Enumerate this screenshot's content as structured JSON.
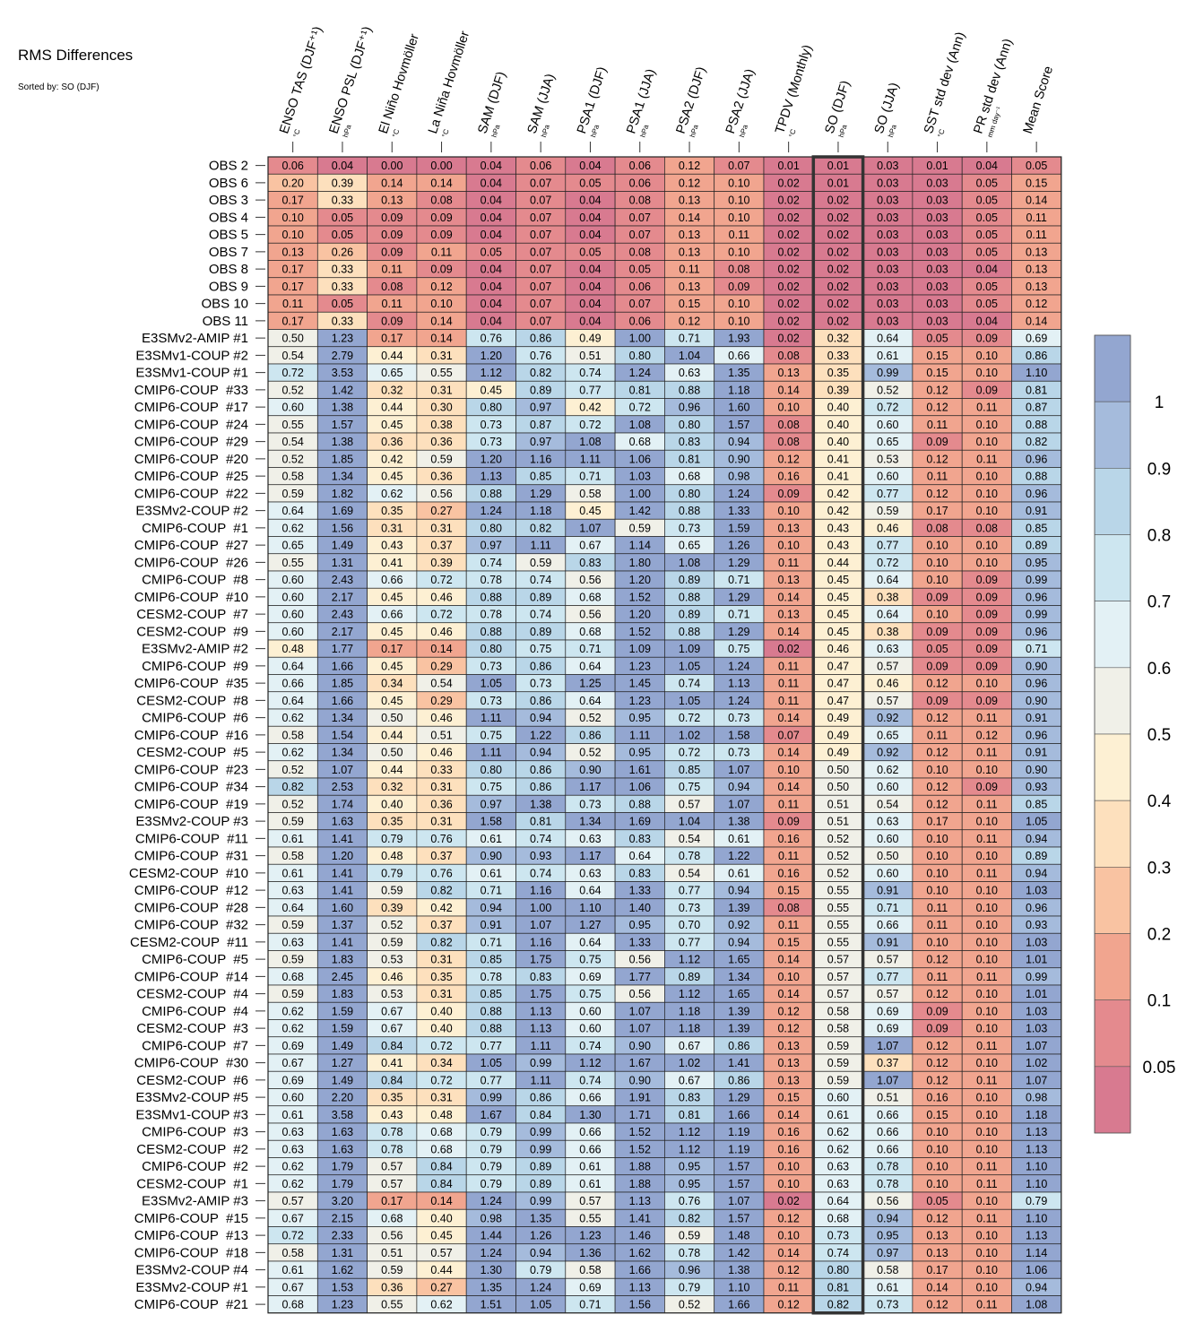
{
  "title": "RMS Differences",
  "subtitle": "Sorted by: SO (DJF)",
  "colors": {
    "bins": [
      "#d87a90",
      "#e48a8e",
      "#f1a58f",
      "#f9c3a2",
      "#fde0bd",
      "#fdf0d3",
      "#f0f0e8",
      "#e3f1f5",
      "#cde6f0",
      "#b9d6e8",
      "#a5bbdc",
      "#93a6d0"
    ],
    "grid": "#222222",
    "highlight": "#333333"
  },
  "chart_data": {
    "type": "heatmap",
    "title": "RMS Differences",
    "subtitle": "Sorted by: SO (DJF)",
    "columns": [
      {
        "name": "ENSO TAS (DJF⁺¹)",
        "unit": "°C"
      },
      {
        "name": "ENSO PSL (DJF⁺¹)",
        "unit": "hPa"
      },
      {
        "name": "El Niño Hovmöller",
        "unit": "°C"
      },
      {
        "name": "La Niña Hovmöller",
        "unit": "°C"
      },
      {
        "name": "SAM (DJF)",
        "unit": "hPa"
      },
      {
        "name": "SAM (JJA)",
        "unit": "hPa"
      },
      {
        "name": "PSA1 (DJF)",
        "unit": "hPa"
      },
      {
        "name": "PSA1 (JJA)",
        "unit": "hPa"
      },
      {
        "name": "PSA2 (DJF)",
        "unit": "hPa"
      },
      {
        "name": "PSA2 (JJA)",
        "unit": "hPa"
      },
      {
        "name": "TPDV (Monthly)",
        "unit": "°C"
      },
      {
        "name": "SO (DJF)",
        "unit": "hPa"
      },
      {
        "name": "SO (JJA)",
        "unit": "hPa"
      },
      {
        "name": "SST std dev (Ann)",
        "unit": "°C"
      },
      {
        "name": "PR std dev (Ann)",
        "unit": "mm day⁻¹"
      },
      {
        "name": "Mean Score",
        "unit": ""
      }
    ],
    "highlight_column": "SO (DJF)",
    "rows": [
      "OBS 2",
      "OBS 6",
      "OBS 3",
      "OBS 4",
      "OBS 5",
      "OBS 7",
      "OBS 8",
      "OBS 9",
      "OBS 10",
      "OBS 11",
      "E3SMv2-AMIP #1",
      "E3SMv1-COUP #2",
      "E3SMv1-COUP #1",
      "CMIP6-COUP  #33",
      "CMIP6-COUP  #17",
      "CMIP6-COUP  #24",
      "CMIP6-COUP  #29",
      "CMIP6-COUP  #20",
      "CMIP6-COUP  #25",
      "CMIP6-COUP  #22",
      "E3SMv2-COUP #2",
      "CMIP6-COUP  #1",
      "CMIP6-COUP  #27",
      "CMIP6-COUP  #26",
      "CMIP6-COUP  #8",
      "CMIP6-COUP  #10",
      "CESM2-COUP  #7",
      "CESM2-COUP  #9",
      "E3SMv2-AMIP #2",
      "CMIP6-COUP  #9",
      "CMIP6-COUP  #35",
      "CESM2-COUP  #8",
      "CMIP6-COUP  #6",
      "CMIP6-COUP  #16",
      "CESM2-COUP  #5",
      "CMIP6-COUP  #23",
      "CMIP6-COUP  #34",
      "CMIP6-COUP  #19",
      "E3SMv2-COUP #3",
      "CMIP6-COUP  #11",
      "CMIP6-COUP  #31",
      "CESM2-COUP  #10",
      "CMIP6-COUP  #12",
      "CMIP6-COUP  #28",
      "CMIP6-COUP  #32",
      "CESM2-COUP  #11",
      "CMIP6-COUP  #5",
      "CMIP6-COUP  #14",
      "CESM2-COUP  #4",
      "CMIP6-COUP  #4",
      "CESM2-COUP  #3",
      "CMIP6-COUP  #7",
      "CMIP6-COUP  #30",
      "CESM2-COUP  #6",
      "E3SMv2-COUP #5",
      "E3SMv1-COUP #3",
      "CMIP6-COUP  #3",
      "CESM2-COUP  #2",
      "CMIP6-COUP  #2",
      "CESM2-COUP  #1",
      "E3SMv2-AMIP #3",
      "CMIP6-COUP  #15",
      "CMIP6-COUP  #13",
      "CMIP6-COUP  #18",
      "E3SMv2-COUP #4",
      "E3SMv2-COUP #1",
      "CMIP6-COUP  #21"
    ],
    "values": [
      [
        0.06,
        0.04,
        0.0,
        0.0,
        0.04,
        0.06,
        0.04,
        0.06,
        0.12,
        0.07,
        0.01,
        0.01,
        0.03,
        0.01,
        0.04,
        0.05
      ],
      [
        0.2,
        0.39,
        0.14,
        0.14,
        0.04,
        0.07,
        0.05,
        0.06,
        0.12,
        0.1,
        0.02,
        0.01,
        0.03,
        0.03,
        0.05,
        0.15
      ],
      [
        0.17,
        0.33,
        0.13,
        0.08,
        0.04,
        0.07,
        0.04,
        0.08,
        0.13,
        0.1,
        0.02,
        0.02,
        0.03,
        0.03,
        0.05,
        0.14
      ],
      [
        0.1,
        0.05,
        0.09,
        0.09,
        0.04,
        0.07,
        0.04,
        0.07,
        0.14,
        0.1,
        0.02,
        0.02,
        0.03,
        0.03,
        0.05,
        0.11
      ],
      [
        0.1,
        0.05,
        0.09,
        0.09,
        0.04,
        0.07,
        0.04,
        0.07,
        0.13,
        0.11,
        0.02,
        0.02,
        0.03,
        0.03,
        0.05,
        0.11
      ],
      [
        0.13,
        0.26,
        0.09,
        0.11,
        0.05,
        0.07,
        0.05,
        0.08,
        0.13,
        0.1,
        0.02,
        0.02,
        0.03,
        0.03,
        0.05,
        0.13
      ],
      [
        0.17,
        0.33,
        0.11,
        0.09,
        0.04,
        0.07,
        0.04,
        0.05,
        0.11,
        0.08,
        0.02,
        0.02,
        0.03,
        0.03,
        0.04,
        0.13
      ],
      [
        0.17,
        0.33,
        0.08,
        0.12,
        0.04,
        0.07,
        0.04,
        0.06,
        0.13,
        0.09,
        0.02,
        0.02,
        0.03,
        0.03,
        0.05,
        0.13
      ],
      [
        0.11,
        0.05,
        0.11,
        0.1,
        0.04,
        0.07,
        0.04,
        0.07,
        0.15,
        0.1,
        0.02,
        0.02,
        0.03,
        0.03,
        0.05,
        0.12
      ],
      [
        0.17,
        0.33,
        0.09,
        0.14,
        0.04,
        0.07,
        0.04,
        0.06,
        0.12,
        0.1,
        0.02,
        0.02,
        0.03,
        0.03,
        0.04,
        0.14
      ],
      [
        0.5,
        1.23,
        0.17,
        0.14,
        0.76,
        0.86,
        0.49,
        1.0,
        0.71,
        1.93,
        0.02,
        0.32,
        0.64,
        0.05,
        0.09,
        0.69
      ],
      [
        0.54,
        2.79,
        0.44,
        0.31,
        1.2,
        0.76,
        0.51,
        0.8,
        1.04,
        0.66,
        0.08,
        0.33,
        0.61,
        0.15,
        0.1,
        0.86
      ],
      [
        0.72,
        3.53,
        0.65,
        0.55,
        1.12,
        0.82,
        0.74,
        1.24,
        0.63,
        1.35,
        0.13,
        0.35,
        0.99,
        0.15,
        0.1,
        1.1
      ],
      [
        0.52,
        1.42,
        0.32,
        0.31,
        0.45,
        0.89,
        0.77,
        0.81,
        0.88,
        1.18,
        0.14,
        0.39,
        0.52,
        0.12,
        0.09,
        0.81
      ],
      [
        0.6,
        1.38,
        0.44,
        0.3,
        0.8,
        0.97,
        0.42,
        0.72,
        0.96,
        1.6,
        0.1,
        0.4,
        0.72,
        0.12,
        0.11,
        0.87
      ],
      [
        0.55,
        1.57,
        0.45,
        0.38,
        0.73,
        0.87,
        0.72,
        1.08,
        0.8,
        1.57,
        0.08,
        0.4,
        0.6,
        0.11,
        0.1,
        0.88
      ],
      [
        0.54,
        1.38,
        0.36,
        0.36,
        0.73,
        0.97,
        1.08,
        0.68,
        0.83,
        0.94,
        0.08,
        0.4,
        0.65,
        0.09,
        0.1,
        0.82
      ],
      [
        0.52,
        1.85,
        0.42,
        0.59,
        1.2,
        1.16,
        1.11,
        1.06,
        0.81,
        0.9,
        0.12,
        0.41,
        0.53,
        0.12,
        0.11,
        0.96
      ],
      [
        0.58,
        1.34,
        0.45,
        0.36,
        1.13,
        0.85,
        0.71,
        1.03,
        0.68,
        0.98,
        0.16,
        0.41,
        0.6,
        0.11,
        0.1,
        0.88
      ],
      [
        0.59,
        1.82,
        0.62,
        0.56,
        0.88,
        1.29,
        0.58,
        1.0,
        0.8,
        1.24,
        0.09,
        0.42,
        0.77,
        0.12,
        0.1,
        0.96
      ],
      [
        0.64,
        1.69,
        0.35,
        0.27,
        1.24,
        1.18,
        0.45,
        1.42,
        0.88,
        1.33,
        0.1,
        0.42,
        0.59,
        0.17,
        0.1,
        0.91
      ],
      [
        0.62,
        1.56,
        0.31,
        0.31,
        0.8,
        0.82,
        1.07,
        0.59,
        0.73,
        1.59,
        0.13,
        0.43,
        0.46,
        0.08,
        0.08,
        0.85
      ],
      [
        0.65,
        1.49,
        0.43,
        0.37,
        0.97,
        1.11,
        0.67,
        1.14,
        0.65,
        1.26,
        0.1,
        0.43,
        0.77,
        0.1,
        0.1,
        0.89
      ],
      [
        0.55,
        1.31,
        0.41,
        0.39,
        0.74,
        0.59,
        0.83,
        1.8,
        1.08,
        1.29,
        0.11,
        0.44,
        0.72,
        0.1,
        0.1,
        0.95
      ],
      [
        0.6,
        2.43,
        0.66,
        0.72,
        0.78,
        0.74,
        0.56,
        1.2,
        0.89,
        0.71,
        0.13,
        0.45,
        0.64,
        0.1,
        0.09,
        0.99
      ],
      [
        0.6,
        2.17,
        0.45,
        0.46,
        0.88,
        0.89,
        0.68,
        1.52,
        0.88,
        1.29,
        0.14,
        0.45,
        0.38,
        0.09,
        0.09,
        0.96
      ],
      [
        0.6,
        2.43,
        0.66,
        0.72,
        0.78,
        0.74,
        0.56,
        1.2,
        0.89,
        0.71,
        0.13,
        0.45,
        0.64,
        0.1,
        0.09,
        0.99
      ],
      [
        0.6,
        2.17,
        0.45,
        0.46,
        0.88,
        0.89,
        0.68,
        1.52,
        0.88,
        1.29,
        0.14,
        0.45,
        0.38,
        0.09,
        0.09,
        0.96
      ],
      [
        0.48,
        1.77,
        0.17,
        0.14,
        0.8,
        0.75,
        0.71,
        1.09,
        1.09,
        0.75,
        0.02,
        0.46,
        0.63,
        0.05,
        0.09,
        0.71
      ],
      [
        0.64,
        1.66,
        0.45,
        0.29,
        0.73,
        0.86,
        0.64,
        1.23,
        1.05,
        1.24,
        0.11,
        0.47,
        0.57,
        0.09,
        0.09,
        0.9
      ],
      [
        0.66,
        1.85,
        0.34,
        0.54,
        1.05,
        0.73,
        1.25,
        1.45,
        0.74,
        1.13,
        0.11,
        0.47,
        0.46,
        0.12,
        0.1,
        0.96
      ],
      [
        0.64,
        1.66,
        0.45,
        0.29,
        0.73,
        0.86,
        0.64,
        1.23,
        1.05,
        1.24,
        0.11,
        0.47,
        0.57,
        0.09,
        0.09,
        0.9
      ],
      [
        0.62,
        1.34,
        0.5,
        0.46,
        1.11,
        0.94,
        0.52,
        0.95,
        0.72,
        0.73,
        0.14,
        0.49,
        0.92,
        0.12,
        0.11,
        0.91
      ],
      [
        0.58,
        1.54,
        0.44,
        0.51,
        0.75,
        1.22,
        0.86,
        1.11,
        1.02,
        1.58,
        0.07,
        0.49,
        0.65,
        0.11,
        0.12,
        0.96
      ],
      [
        0.62,
        1.34,
        0.5,
        0.46,
        1.11,
        0.94,
        0.52,
        0.95,
        0.72,
        0.73,
        0.14,
        0.49,
        0.92,
        0.12,
        0.11,
        0.91
      ],
      [
        0.52,
        1.07,
        0.44,
        0.33,
        0.8,
        0.86,
        0.9,
        1.61,
        0.85,
        1.07,
        0.1,
        0.5,
        0.62,
        0.1,
        0.1,
        0.9
      ],
      [
        0.82,
        2.53,
        0.32,
        0.31,
        0.75,
        0.86,
        1.17,
        1.06,
        0.75,
        0.94,
        0.14,
        0.5,
        0.6,
        0.12,
        0.09,
        0.93
      ],
      [
        0.52,
        1.74,
        0.4,
        0.36,
        0.97,
        1.38,
        0.73,
        0.88,
        0.57,
        1.07,
        0.11,
        0.51,
        0.54,
        0.12,
        0.11,
        0.85
      ],
      [
        0.59,
        1.63,
        0.35,
        0.31,
        1.58,
        0.81,
        1.34,
        1.69,
        1.04,
        1.38,
        0.09,
        0.51,
        0.63,
        0.17,
        0.1,
        1.05
      ],
      [
        0.61,
        1.41,
        0.79,
        0.76,
        0.61,
        0.74,
        0.63,
        0.83,
        0.54,
        0.61,
        0.16,
        0.52,
        0.6,
        0.1,
        0.11,
        0.94
      ],
      [
        0.58,
        1.2,
        0.48,
        0.37,
        0.9,
        0.93,
        1.17,
        0.64,
        0.78,
        1.22,
        0.11,
        0.52,
        0.5,
        0.1,
        0.1,
        0.89
      ],
      [
        0.61,
        1.41,
        0.79,
        0.76,
        0.61,
        0.74,
        0.63,
        0.83,
        0.54,
        0.61,
        0.16,
        0.52,
        0.6,
        0.1,
        0.11,
        0.94
      ],
      [
        0.63,
        1.41,
        0.59,
        0.82,
        0.71,
        1.16,
        0.64,
        1.33,
        0.77,
        0.94,
        0.15,
        0.55,
        0.91,
        0.1,
        0.1,
        1.03
      ],
      [
        0.64,
        1.6,
        0.39,
        0.42,
        0.94,
        1.0,
        1.1,
        1.4,
        0.73,
        1.39,
        0.08,
        0.55,
        0.71,
        0.11,
        0.1,
        0.96
      ],
      [
        0.59,
        1.37,
        0.52,
        0.37,
        0.91,
        1.07,
        1.27,
        0.95,
        0.7,
        0.92,
        0.11,
        0.55,
        0.66,
        0.11,
        0.1,
        0.93
      ],
      [
        0.63,
        1.41,
        0.59,
        0.82,
        0.71,
        1.16,
        0.64,
        1.33,
        0.77,
        0.94,
        0.15,
        0.55,
        0.91,
        0.1,
        0.1,
        1.03
      ],
      [
        0.59,
        1.83,
        0.53,
        0.31,
        0.85,
        1.75,
        0.75,
        0.56,
        1.12,
        1.65,
        0.14,
        0.57,
        0.57,
        0.12,
        0.1,
        1.01
      ],
      [
        0.68,
        2.45,
        0.46,
        0.35,
        0.78,
        0.83,
        0.69,
        1.77,
        0.89,
        1.34,
        0.1,
        0.57,
        0.77,
        0.11,
        0.11,
        0.99
      ],
      [
        0.59,
        1.83,
        0.53,
        0.31,
        0.85,
        1.75,
        0.75,
        0.56,
        1.12,
        1.65,
        0.14,
        0.57,
        0.57,
        0.12,
        0.1,
        1.01
      ],
      [
        0.62,
        1.59,
        0.67,
        0.4,
        0.88,
        1.13,
        0.6,
        1.07,
        1.18,
        1.39,
        0.12,
        0.58,
        0.69,
        0.09,
        0.1,
        1.03
      ],
      [
        0.62,
        1.59,
        0.67,
        0.4,
        0.88,
        1.13,
        0.6,
        1.07,
        1.18,
        1.39,
        0.12,
        0.58,
        0.69,
        0.09,
        0.1,
        1.03
      ],
      [
        0.69,
        1.49,
        0.84,
        0.72,
        0.77,
        1.11,
        0.74,
        0.9,
        0.67,
        0.86,
        0.13,
        0.59,
        1.07,
        0.12,
        0.11,
        1.07
      ],
      [
        0.67,
        1.27,
        0.41,
        0.34,
        1.05,
        0.99,
        1.12,
        1.67,
        1.02,
        1.41,
        0.13,
        0.59,
        0.37,
        0.12,
        0.1,
        1.02
      ],
      [
        0.69,
        1.49,
        0.84,
        0.72,
        0.77,
        1.11,
        0.74,
        0.9,
        0.67,
        0.86,
        0.13,
        0.59,
        1.07,
        0.12,
        0.11,
        1.07
      ],
      [
        0.6,
        2.2,
        0.35,
        0.31,
        0.99,
        0.86,
        0.66,
        1.91,
        0.83,
        1.29,
        0.15,
        0.6,
        0.51,
        0.16,
        0.1,
        0.98
      ],
      [
        0.61,
        3.58,
        0.43,
        0.48,
        1.67,
        0.84,
        1.3,
        1.71,
        0.81,
        1.66,
        0.14,
        0.61,
        0.66,
        0.15,
        0.1,
        1.18
      ],
      [
        0.63,
        1.63,
        0.78,
        0.68,
        0.79,
        0.99,
        0.66,
        1.52,
        1.12,
        1.19,
        0.16,
        0.62,
        0.66,
        0.1,
        0.1,
        1.13
      ],
      [
        0.63,
        1.63,
        0.78,
        0.68,
        0.79,
        0.99,
        0.66,
        1.52,
        1.12,
        1.19,
        0.16,
        0.62,
        0.66,
        0.1,
        0.1,
        1.13
      ],
      [
        0.62,
        1.79,
        0.57,
        0.84,
        0.79,
        0.89,
        0.61,
        1.88,
        0.95,
        1.57,
        0.1,
        0.63,
        0.78,
        0.1,
        0.11,
        1.1
      ],
      [
        0.62,
        1.79,
        0.57,
        0.84,
        0.79,
        0.89,
        0.61,
        1.88,
        0.95,
        1.57,
        0.1,
        0.63,
        0.78,
        0.1,
        0.11,
        1.1
      ],
      [
        0.57,
        3.2,
        0.17,
        0.14,
        1.24,
        0.99,
        0.57,
        1.13,
        0.76,
        1.07,
        0.02,
        0.64,
        0.56,
        0.05,
        0.1,
        0.79
      ],
      [
        0.67,
        2.15,
        0.68,
        0.4,
        0.98,
        1.35,
        0.55,
        1.41,
        0.82,
        1.57,
        0.12,
        0.68,
        0.94,
        0.12,
        0.11,
        1.1
      ],
      [
        0.72,
        2.33,
        0.56,
        0.45,
        1.44,
        1.26,
        1.23,
        1.46,
        0.59,
        1.48,
        0.1,
        0.73,
        0.95,
        0.13,
        0.1,
        1.13
      ],
      [
        0.58,
        1.31,
        0.51,
        0.57,
        1.24,
        0.94,
        1.36,
        1.62,
        0.78,
        1.42,
        0.14,
        0.74,
        0.97,
        0.13,
        0.1,
        1.14
      ],
      [
        0.61,
        1.62,
        0.59,
        0.44,
        1.3,
        0.79,
        0.58,
        1.66,
        0.96,
        1.38,
        0.12,
        0.8,
        0.58,
        0.17,
        0.1,
        1.06
      ],
      [
        0.67,
        1.53,
        0.36,
        0.27,
        1.35,
        1.24,
        0.69,
        1.13,
        0.79,
        1.1,
        0.11,
        0.81,
        0.61,
        0.14,
        0.1,
        0.94
      ],
      [
        0.68,
        1.23,
        0.55,
        0.62,
        1.51,
        1.05,
        0.71,
        1.56,
        0.52,
        1.66,
        0.12,
        0.82,
        0.73,
        0.12,
        0.11,
        1.08
      ]
    ],
    "colorbar": {
      "tick_labels": [
        "1",
        "0.9",
        "0.8",
        "0.7",
        "0.6",
        "0.5",
        "0.4",
        "0.3",
        "0.2",
        "0.1",
        "0.05"
      ]
    }
  }
}
